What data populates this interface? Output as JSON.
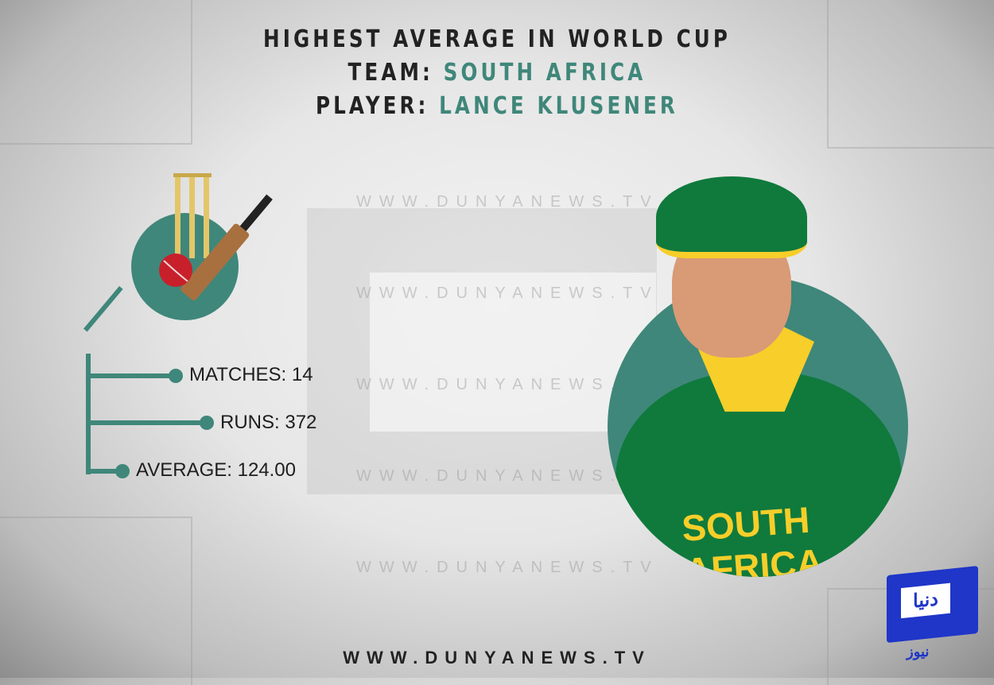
{
  "header": {
    "title": "HIGHEST AVERAGE IN WORLD CUP",
    "team_label": "TEAM:",
    "team_value": "SOUTH AFRICA",
    "player_label": "PLAYER:",
    "player_value": "LANCE KLUSENER"
  },
  "stats": [
    {
      "label": "MATCHES: 14"
    },
    {
      "label": "RUNS: 372"
    },
    {
      "label": "AVERAGE: 124.00"
    }
  ],
  "watermark": "WWW.DUNYANEWS.TV",
  "footer": "WWW.DUNYANEWS.TV",
  "logo": {
    "text": "دنیا",
    "subtext": "نیوز"
  },
  "photo_text": "SOUTH AFRICA",
  "colors": {
    "accent": "#3f877a",
    "text": "#222222",
    "logo_blue": "#1f36c8"
  },
  "icons": [
    "cricket-bat-ball-stumps-icon",
    "dunya-news-logo"
  ]
}
